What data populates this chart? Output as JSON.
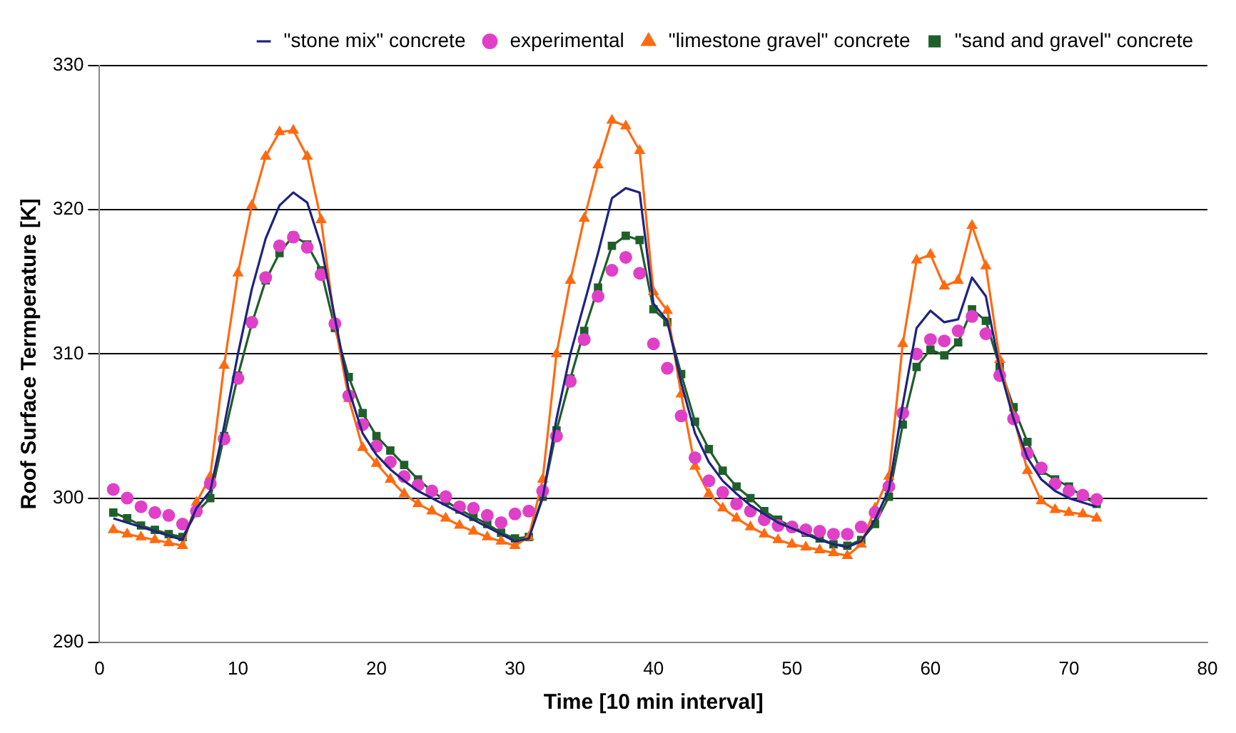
{
  "chart_data": {
    "type": "line",
    "xlabel": "Time [10 min interval]",
    "ylabel": "Roof Surface Termperature [K]",
    "x": [
      1,
      2,
      3,
      4,
      5,
      6,
      7,
      8,
      9,
      10,
      11,
      12,
      13,
      14,
      15,
      16,
      17,
      18,
      19,
      20,
      21,
      22,
      23,
      24,
      25,
      26,
      27,
      28,
      29,
      30,
      31,
      32,
      33,
      34,
      35,
      36,
      37,
      38,
      39,
      40,
      41,
      42,
      43,
      44,
      45,
      46,
      47,
      48,
      49,
      50,
      51,
      52,
      53,
      54,
      55,
      56,
      57,
      58,
      59,
      60,
      61,
      62,
      63,
      64,
      65,
      66,
      67,
      68,
      69,
      70,
      71,
      72
    ],
    "xlim": [
      0,
      80
    ],
    "xticks": [
      0,
      10,
      20,
      30,
      40,
      50,
      60,
      70,
      80
    ],
    "ylim": [
      290,
      330
    ],
    "yticks": [
      290,
      300,
      310,
      320,
      330
    ],
    "grid": "y",
    "legend": "top right",
    "series": [
      {
        "name": "\"stone mix\" concrete",
        "type": "line",
        "color": "#1f237f",
        "marker": "none",
        "values": [
          298.6,
          298.3,
          298.0,
          297.7,
          297.4,
          297.1,
          299.3,
          300.5,
          305.0,
          310.0,
          314.5,
          318.0,
          320.3,
          321.2,
          320.5,
          317.5,
          312.5,
          307.5,
          304.5,
          303.0,
          302.0,
          301.2,
          300.5,
          300.0,
          299.5,
          299.0,
          298.5,
          298.0,
          297.5,
          297.0,
          297.2,
          300.0,
          305.5,
          310.0,
          313.5,
          317.0,
          320.8,
          321.5,
          321.2,
          313.5,
          312.3,
          308.0,
          304.5,
          302.5,
          301.2,
          300.3,
          299.5,
          298.9,
          298.3,
          297.9,
          297.5,
          297.1,
          296.8,
          296.6,
          297.0,
          298.5,
          300.6,
          306.5,
          311.8,
          313.0,
          312.2,
          312.4,
          315.3,
          314.0,
          309.0,
          305.5,
          302.8,
          301.3,
          300.5,
          300.0,
          299.7,
          299.4
        ]
      },
      {
        "name": "experimental",
        "type": "scatter",
        "color": "#e040c8",
        "marker": "circle",
        "values": [
          300.6,
          300.0,
          299.4,
          299.0,
          298.8,
          298.2,
          299.1,
          301.0,
          304.1,
          308.3,
          312.2,
          315.3,
          317.5,
          318.1,
          317.4,
          315.5,
          312.1,
          307.1,
          305.1,
          303.6,
          302.5,
          301.5,
          300.9,
          300.5,
          300.1,
          299.4,
          299.3,
          298.8,
          298.3,
          298.9,
          299.1,
          300.5,
          304.3,
          308.1,
          311.0,
          314.0,
          315.8,
          316.7,
          315.6,
          310.7,
          309.0,
          305.7,
          302.8,
          301.2,
          300.4,
          299.6,
          299.1,
          298.5,
          298.1,
          298.0,
          297.8,
          297.7,
          297.5,
          297.5,
          298.0,
          299.0,
          300.8,
          305.9,
          310.0,
          311.0,
          310.9,
          311.6,
          312.6,
          311.4,
          308.5,
          305.5,
          303.1,
          302.1,
          301.0,
          300.5,
          300.2,
          299.9
        ]
      },
      {
        "name": "\"limestone gravel\" concrete",
        "type": "line",
        "color": "#ff6a10",
        "marker": "triangle",
        "values": [
          297.8,
          297.5,
          297.3,
          297.1,
          296.9,
          296.7,
          299.7,
          301.5,
          309.2,
          315.6,
          320.3,
          323.7,
          325.4,
          325.5,
          323.7,
          319.3,
          312.1,
          306.9,
          303.5,
          302.4,
          301.3,
          300.3,
          299.6,
          299.1,
          298.6,
          298.1,
          297.7,
          297.3,
          297.0,
          296.7,
          297.3,
          301.3,
          310.0,
          315.1,
          319.4,
          323.1,
          326.2,
          325.8,
          324.1,
          314.3,
          313.0,
          307.2,
          302.2,
          300.3,
          299.3,
          298.6,
          298.0,
          297.5,
          297.1,
          296.8,
          296.6,
          296.4,
          296.2,
          296.0,
          296.8,
          299.3,
          301.5,
          310.7,
          316.5,
          316.9,
          314.7,
          315.1,
          318.9,
          316.1,
          309.6,
          305.7,
          301.9,
          299.8,
          299.2,
          299.0,
          298.9,
          298.6
        ]
      },
      {
        "name": "\"sand and gravel\" concrete",
        "type": "line",
        "color": "#1f5f2a",
        "marker": "square",
        "values": [
          299.0,
          298.6,
          298.1,
          297.8,
          297.5,
          297.3,
          299.0,
          300.0,
          304.3,
          308.5,
          312.1,
          315.1,
          317.0,
          318.2,
          317.6,
          315.8,
          311.8,
          308.4,
          305.9,
          304.3,
          303.3,
          302.3,
          301.3,
          300.5,
          299.8,
          299.2,
          298.7,
          298.2,
          297.6,
          297.2,
          297.3,
          300.1,
          304.7,
          308.3,
          311.6,
          314.6,
          317.5,
          318.2,
          317.9,
          313.1,
          312.2,
          308.6,
          305.3,
          303.4,
          301.9,
          300.8,
          300.0,
          299.1,
          298.5,
          298.0,
          297.6,
          297.2,
          296.8,
          296.7,
          297.1,
          298.2,
          300.1,
          305.1,
          309.1,
          310.3,
          309.9,
          310.8,
          313.1,
          312.3,
          309.1,
          306.3,
          303.9,
          301.9,
          301.3,
          300.8,
          300.1,
          299.6
        ]
      }
    ]
  }
}
